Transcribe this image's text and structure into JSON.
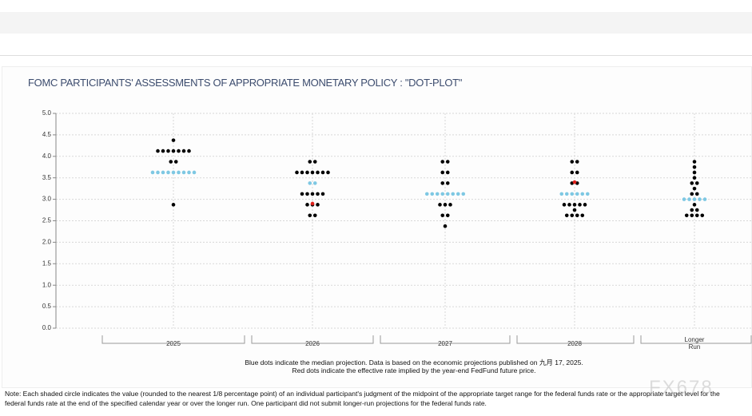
{
  "chart_data": {
    "type": "dotplot",
    "title": "FOMC PARTICIPANTS' ASSESSMENTS OF APPROPRIATE MONETARY POLICY : \"DOT-PLOT\"",
    "categories": [
      "2025",
      "2026",
      "2027",
      "2028",
      "Longer Run"
    ],
    "ylim": [
      0,
      5
    ],
    "yticks": [
      {
        "value": 0,
        "label": "0.0"
      },
      0.5,
      {
        "value": 1,
        "label": "1.0"
      },
      1.5,
      {
        "value": 2,
        "label": "2.0"
      },
      2.5,
      {
        "value": 3,
        "label": "3.0"
      },
      3.5,
      {
        "value": 4,
        "label": "4.0"
      },
      4.5,
      {
        "value": 5,
        "label": "5.0"
      }
    ],
    "grid": true,
    "series": [
      {
        "color": "#000000",
        "values": [
          [
            4.375,
            4.125,
            4.125,
            4.125,
            4.125,
            4.125,
            4.125,
            4.125,
            3.875,
            3.875,
            2.875
          ],
          [
            3.875,
            3.875,
            3.625,
            3.625,
            3.625,
            3.625,
            3.625,
            3.625,
            3.625,
            3.125,
            3.125,
            3.125,
            3.125,
            3.125,
            2.875,
            2.875,
            2.875,
            2.625,
            2.625
          ],
          [
            3.875,
            3.875,
            3.625,
            3.625,
            3.375,
            3.375,
            2.875,
            2.875,
            2.875,
            2.625,
            2.625,
            2.375
          ],
          [
            3.875,
            3.875,
            3.625,
            3.625,
            3.375,
            3.375,
            2.875,
            2.875,
            2.875,
            2.875,
            2.875,
            2.75,
            2.625,
            2.625,
            2.625,
            2.625
          ],
          [
            3.875,
            3.75,
            3.625,
            3.5,
            3.375,
            3.375,
            3.25,
            3.125,
            3.125,
            2.875,
            2.75,
            2.75,
            2.625,
            2.625,
            2.625,
            2.625
          ]
        ]
      },
      {
        "color": "#7ec8e3",
        "values": [
          [
            3.625,
            3.625,
            3.625,
            3.625,
            3.625,
            3.625,
            3.625,
            3.625,
            3.625
          ],
          [
            3.375,
            3.375
          ],
          [
            3.125,
            3.125,
            3.125,
            3.125,
            3.125,
            3.125,
            3.125,
            3.125
          ],
          [
            3.125,
            3.125,
            3.125,
            3.125,
            3.125,
            3.125
          ],
          [
            3,
            3,
            3,
            3,
            3
          ]
        ]
      },
      {
        "color": "#e0201b",
        "values": [
          [],
          [
            2.9
          ],
          [],
          [
            3.4
          ],
          []
        ]
      }
    ],
    "notes": [
      "Blue dots indicate the median projection. Data is based on the economic projections published on 九月 17, 2025.",
      "Red dots indicate the effective rate implied by the year-end FedFund future price."
    ],
    "footnote": [
      "Note: Each shaded circle indicates the value (rounded to the nearest 1/8 percentage point) of an individual participant's judgment of the midpoint of the appropriate target range for the federal funds rate or the appropriate target level for the",
      "federal funds rate at the end of the specified calendar year or over the longer run. One participant did not submit longer-run projections for the federal funds rate."
    ],
    "watermark": "FX678"
  }
}
